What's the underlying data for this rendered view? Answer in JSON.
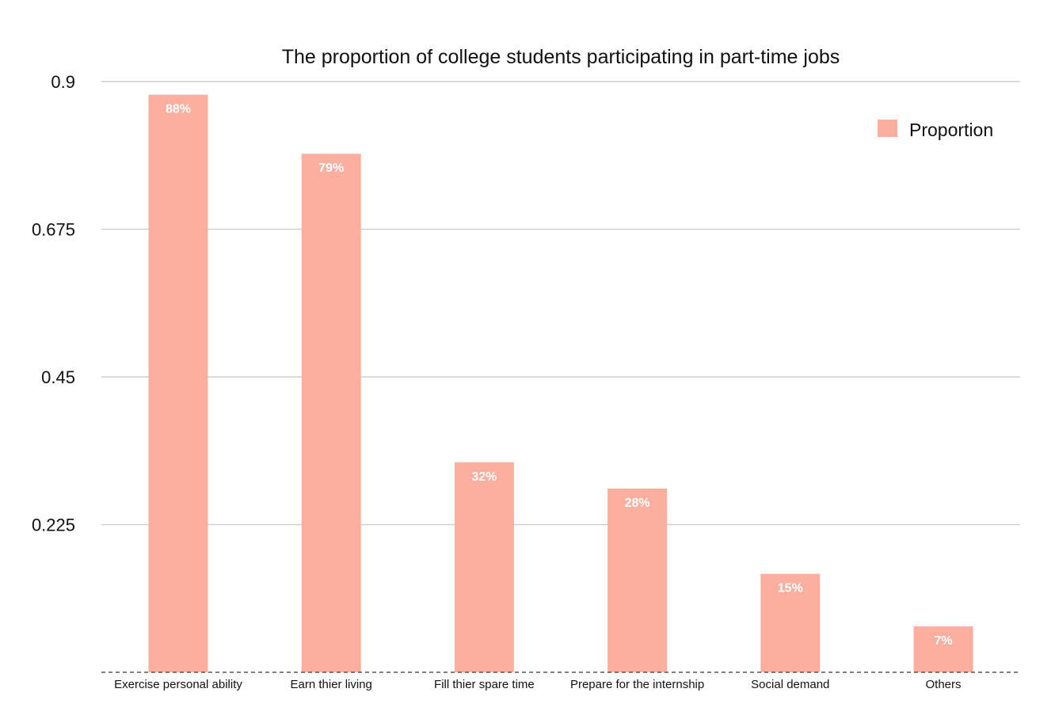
{
  "chart_data": {
    "type": "bar",
    "title": "The proportion of college students participating in part-time jobs",
    "categories": [
      "Exercise personal ability",
      "Earn thier living",
      "Fill thier spare time",
      "Prepare for the internship",
      "Social demand",
      "Others"
    ],
    "series": [
      {
        "name": "Proportion",
        "values": [
          0.88,
          0.79,
          0.32,
          0.28,
          0.15,
          0.07
        ],
        "labels": [
          "88%",
          "79%",
          "32%",
          "28%",
          "15%",
          "7%"
        ],
        "color": "#fcaf9e"
      }
    ],
    "yticks": [
      "0.9",
      "0.675",
      "0.45",
      "0.225"
    ],
    "ytick_values": [
      0.9,
      0.675,
      0.45,
      0.225
    ],
    "ylim": [
      0,
      0.9
    ],
    "grid": true,
    "legend_position": "top-right",
    "colors": {
      "grid": "#cfcfcf",
      "baseline": "#555555",
      "text": "#111111",
      "bar_label": "#ffffff"
    }
  }
}
